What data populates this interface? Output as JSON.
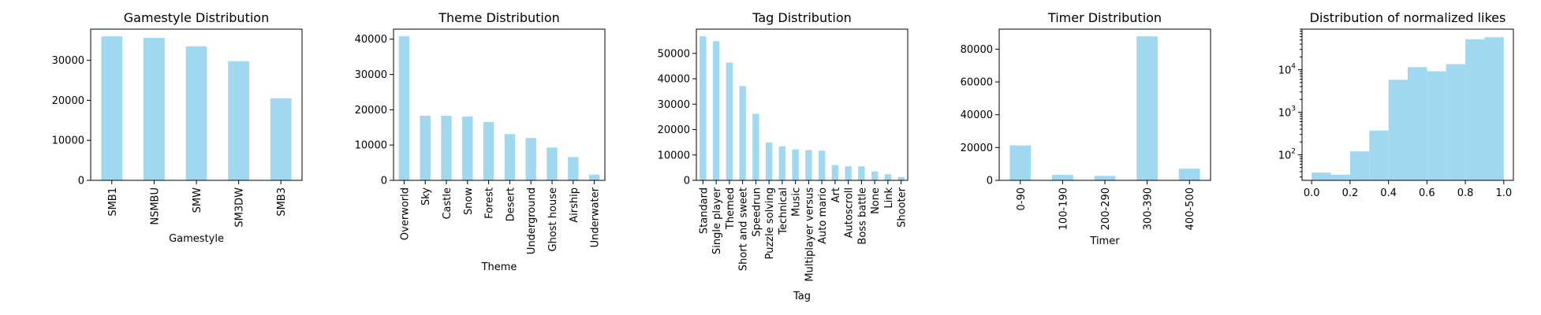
{
  "chart_data": [
    {
      "type": "bar",
      "title": "Gamestyle Distribution",
      "xlabel": "Gamestyle",
      "ylabel": "",
      "categories": [
        "SMB1",
        "NSMBU",
        "SMW",
        "SM3DW",
        "SMB3"
      ],
      "values": [
        36000,
        35600,
        33500,
        29800,
        20500
      ],
      "ylim": [
        0,
        37800
      ],
      "yticks": [
        0,
        10000,
        20000,
        30000
      ],
      "bar_color": "#a0d8ef",
      "grid": false
    },
    {
      "type": "bar",
      "title": "Theme Distribution",
      "xlabel": "Theme",
      "ylabel": "",
      "categories": [
        "Overworld",
        "Sky",
        "Castle",
        "Snow",
        "Forest",
        "Desert",
        "Underground",
        "Ghost house",
        "Airship",
        "Underwater"
      ],
      "values": [
        40800,
        18300,
        18300,
        18100,
        16500,
        13100,
        12000,
        9300,
        6600,
        1600
      ],
      "ylim": [
        0,
        42840
      ],
      "yticks": [
        0,
        10000,
        20000,
        30000,
        40000
      ],
      "bar_color": "#a0d8ef",
      "grid": false
    },
    {
      "type": "bar",
      "title": "Tag Distribution",
      "xlabel": "Tag",
      "ylabel": "",
      "categories": [
        "Standard",
        "Single player",
        "Themed",
        "Short and sweet",
        "Speedrun",
        "Puzzle solving",
        "Technical",
        "Music",
        "Multiplayer versus",
        "Auto mario",
        "Art",
        "Autoscroll",
        "Boss battle",
        "None",
        "Link",
        "Shooter"
      ],
      "values": [
        56700,
        54800,
        46400,
        37100,
        26200,
        14900,
        13400,
        12200,
        11900,
        11700,
        6000,
        5500,
        5500,
        3500,
        2400,
        1300
      ],
      "ylim": [
        0,
        59535
      ],
      "yticks": [
        0,
        10000,
        20000,
        30000,
        40000,
        50000
      ],
      "bar_color": "#a0d8ef",
      "grid": false
    },
    {
      "type": "bar",
      "title": "Timer Distribution",
      "xlabel": "Timer",
      "ylabel": "",
      "categories": [
        "0-90",
        "100-190",
        "200-290",
        "300-390",
        "400-500"
      ],
      "values": [
        21300,
        3300,
        2700,
        87800,
        7100
      ],
      "ylim": [
        0,
        92190
      ],
      "yticks": [
        0,
        20000,
        40000,
        60000,
        80000
      ],
      "bar_color": "#a0d8ef",
      "grid": false
    },
    {
      "type": "histogram",
      "title": "Distribution of normalized likes",
      "xlabel": "",
      "ylabel": "",
      "yscale": "log",
      "bins": [
        0.0,
        0.1,
        0.2,
        0.3,
        0.4,
        0.5,
        0.6,
        0.7,
        0.8,
        0.9,
        1.0
      ],
      "values": [
        38,
        34,
        120,
        370,
        5800,
        11500,
        9200,
        13500,
        52000,
        58000
      ],
      "xlim": [
        -0.05,
        1.05
      ],
      "ylim": [
        25,
        90000
      ],
      "xticks": [
        "0.0",
        "0.2",
        "0.4",
        "0.6",
        "0.8",
        "1.0"
      ],
      "ytick_exponents": [
        2,
        3,
        4
      ],
      "bar_color": "#a0d8ef",
      "grid": false
    }
  ]
}
